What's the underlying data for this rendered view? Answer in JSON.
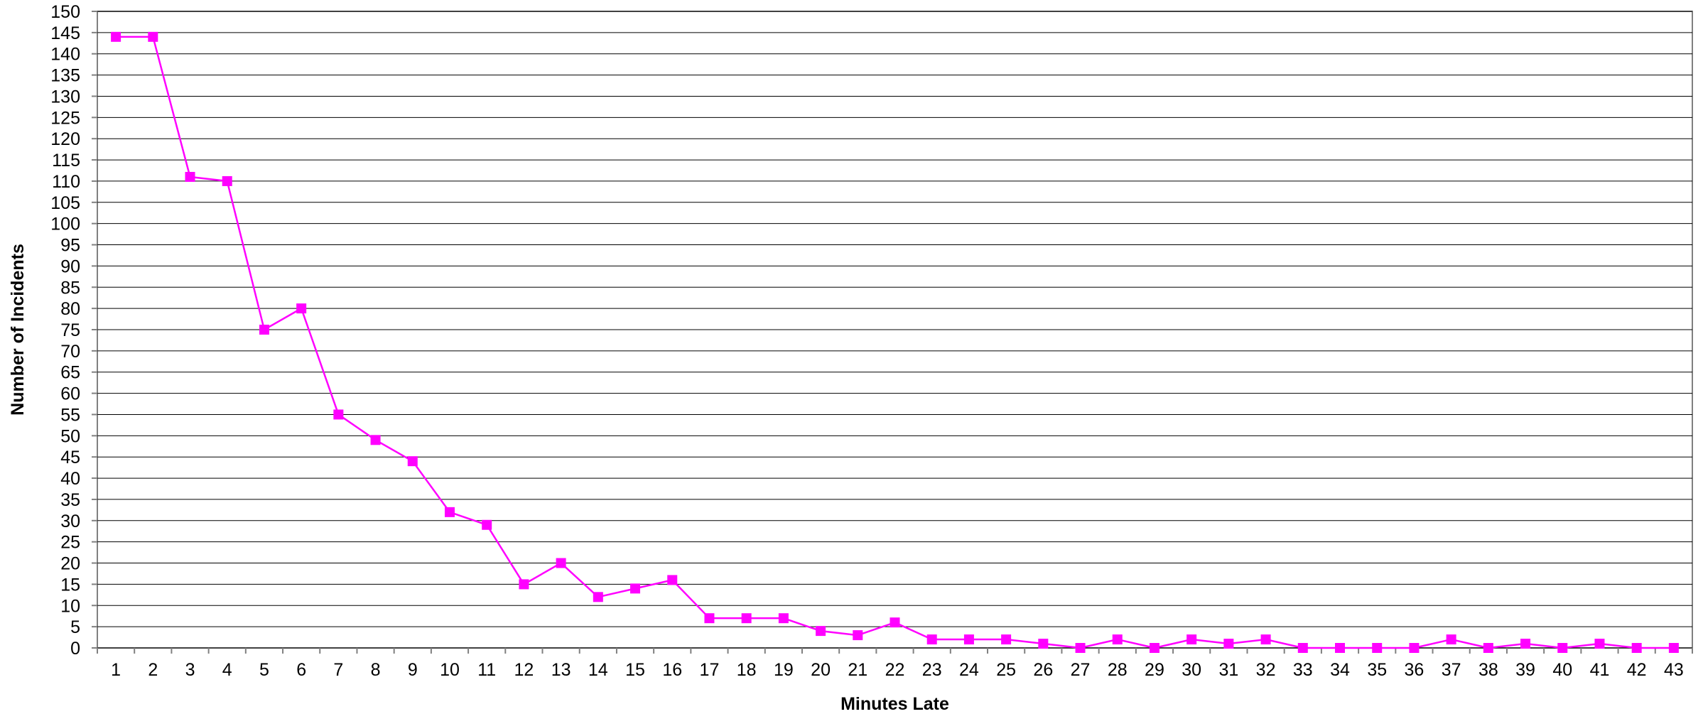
{
  "chart_data": {
    "type": "line",
    "title": "",
    "xlabel": "Minutes Late",
    "ylabel": "Number of Incidents",
    "ylim": [
      0,
      150
    ],
    "ytick_step": 5,
    "grid": true,
    "legend": "none",
    "series_color": "#FF00FF",
    "marker": "square",
    "categories": [
      "1",
      "2",
      "3",
      "4",
      "5",
      "6",
      "7",
      "8",
      "9",
      "10",
      "11",
      "12",
      "13",
      "14",
      "15",
      "16",
      "17",
      "18",
      "19",
      "20",
      "21",
      "22",
      "23",
      "24",
      "25",
      "26",
      "27",
      "28",
      "29",
      "30",
      "31",
      "32",
      "33",
      "34",
      "35",
      "36",
      "37",
      "38",
      "39",
      "40",
      "41",
      "42",
      "43"
    ],
    "values": [
      144,
      144,
      111,
      110,
      75,
      80,
      55,
      49,
      44,
      32,
      29,
      15,
      20,
      12,
      14,
      16,
      7,
      7,
      7,
      4,
      3,
      6,
      2,
      2,
      2,
      1,
      0,
      2,
      0,
      2,
      1,
      2,
      0,
      0,
      0,
      0,
      2,
      0,
      1,
      0,
      1,
      0,
      0
    ]
  }
}
